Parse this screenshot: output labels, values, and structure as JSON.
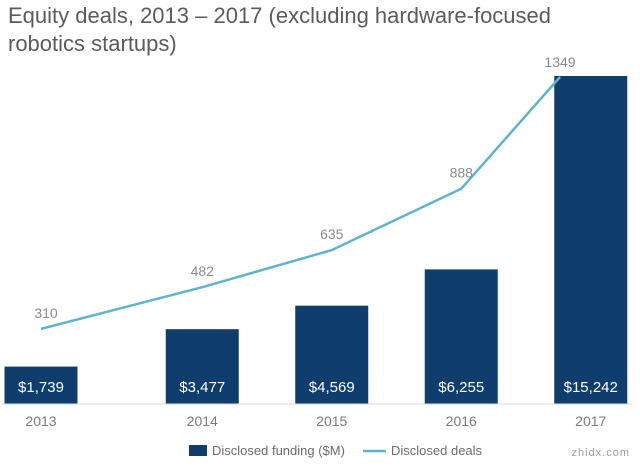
{
  "chart_data": {
    "type": "bar",
    "title_lines": [
      "Equity deals, 2013 – 2017 (excluding hardware-focused",
      "robotics startups)"
    ],
    "categories": [
      "2013",
      "2014",
      "2015",
      "2016",
      "2017"
    ],
    "series": [
      {
        "name": "Disclosed funding ($M)",
        "kind": "bar",
        "color": "#0f3d6e",
        "values": [
          1739,
          3477,
          4569,
          6255,
          15242
        ],
        "labels": [
          "$1,739",
          "$3,477",
          "$4,569",
          "$6,255",
          "$15,242"
        ]
      },
      {
        "name": "Disclosed deals",
        "kind": "line",
        "color": "#5fb3cf",
        "values": [
          310,
          482,
          635,
          888,
          1349
        ]
      }
    ],
    "bar_ylim": [
      0,
      16000
    ],
    "line_ylim": [
      0,
      1400
    ],
    "legend_position": "bottom-center",
    "grid": false
  },
  "watermark": {
    "text": "zhidx.com"
  }
}
